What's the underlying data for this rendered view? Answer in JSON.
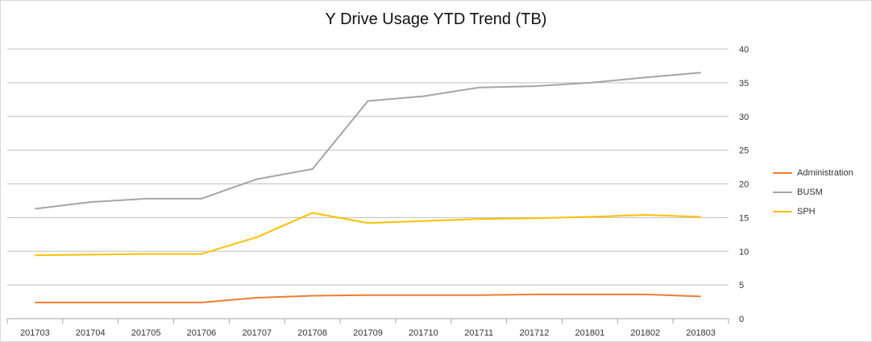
{
  "chart_data": {
    "type": "line",
    "title": "Y Drive Usage YTD Trend (TB)",
    "categories": [
      "201703",
      "201704",
      "201705",
      "201706",
      "201707",
      "201708",
      "201709",
      "201710",
      "201711",
      "201712",
      "201801",
      "201802",
      "201803"
    ],
    "ylim": [
      0,
      40
    ],
    "yticks": [
      0,
      5,
      10,
      15,
      20,
      25,
      30,
      35,
      40
    ],
    "y_axis_side": "right",
    "grid": true,
    "legend_position": "right",
    "series": [
      {
        "name": "Administration",
        "color": "#ED7D31",
        "values": [
          2.4,
          2.4,
          2.4,
          2.4,
          3.1,
          3.4,
          3.5,
          3.5,
          3.5,
          3.6,
          3.6,
          3.6,
          3.3
        ]
      },
      {
        "name": "BUSM",
        "color": "#A5A5A5",
        "values": [
          16.3,
          17.3,
          17.8,
          17.8,
          20.7,
          22.2,
          32.3,
          33.0,
          34.3,
          34.5,
          35.0,
          35.8,
          36.5
        ]
      },
      {
        "name": "SPH",
        "color": "#FFC000",
        "values": [
          9.4,
          9.5,
          9.6,
          9.6,
          12.1,
          15.7,
          14.2,
          14.5,
          14.8,
          14.9,
          15.1,
          15.4,
          15.1
        ]
      }
    ]
  }
}
